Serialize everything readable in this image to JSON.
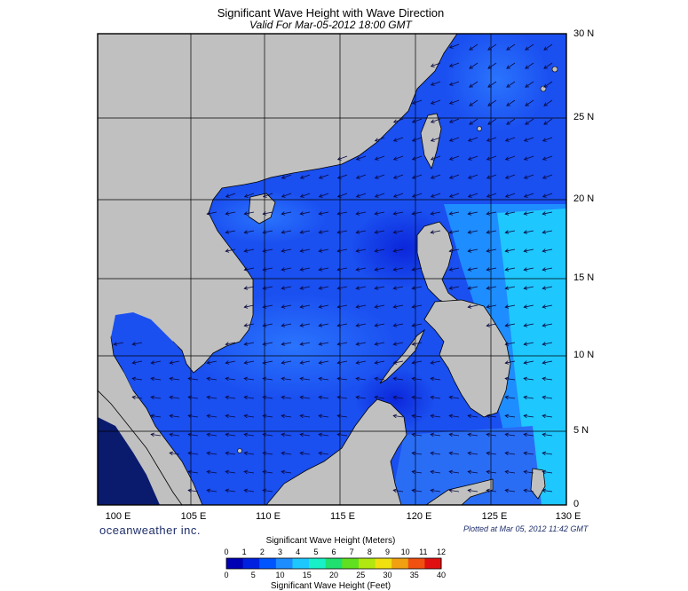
{
  "header": {
    "title": "Significant Wave Height with Wave Direction",
    "subtitle": "Valid For Mar-05-2012 18:00 GMT"
  },
  "map": {
    "lat_labels": [
      "30 N",
      "25 N",
      "20 N",
      "15 N",
      "10 N",
      "5 N",
      "0"
    ],
    "lon_labels": [
      "100 E",
      "105 E",
      "110 E",
      "115 E",
      "120 E",
      "125 E",
      "130 E"
    ],
    "colors": {
      "land": "#c0c0c0",
      "sea_mid": "#1a4ff0",
      "sea_dark": "#0a22d8",
      "sea_light": "#1e8dff",
      "sea_cyan": "#1ec8ff",
      "grid": "#000000"
    }
  },
  "footer": {
    "brand": "oceanweather inc.",
    "plotted": "Plotted at Mar 05, 2012 11:42 GMT"
  },
  "colorbar": {
    "title_top": "Significant Wave Height (Meters)",
    "title_bottom": "Significant Wave Height (Feet)",
    "meters_ticks": [
      "0",
      "1",
      "2",
      "3",
      "4",
      "5",
      "6",
      "7",
      "8",
      "9",
      "10",
      "11",
      "12"
    ],
    "feet_ticks": [
      "0",
      "5",
      "10",
      "15",
      "20",
      "25",
      "30",
      "35",
      "40"
    ],
    "colors": [
      "#0000b4",
      "#0022e0",
      "#0055ff",
      "#1d8dff",
      "#1ec8ff",
      "#18f0c8",
      "#20e070",
      "#60e020",
      "#b0e810",
      "#f0e010",
      "#f0a010",
      "#f05010",
      "#e01010"
    ]
  }
}
